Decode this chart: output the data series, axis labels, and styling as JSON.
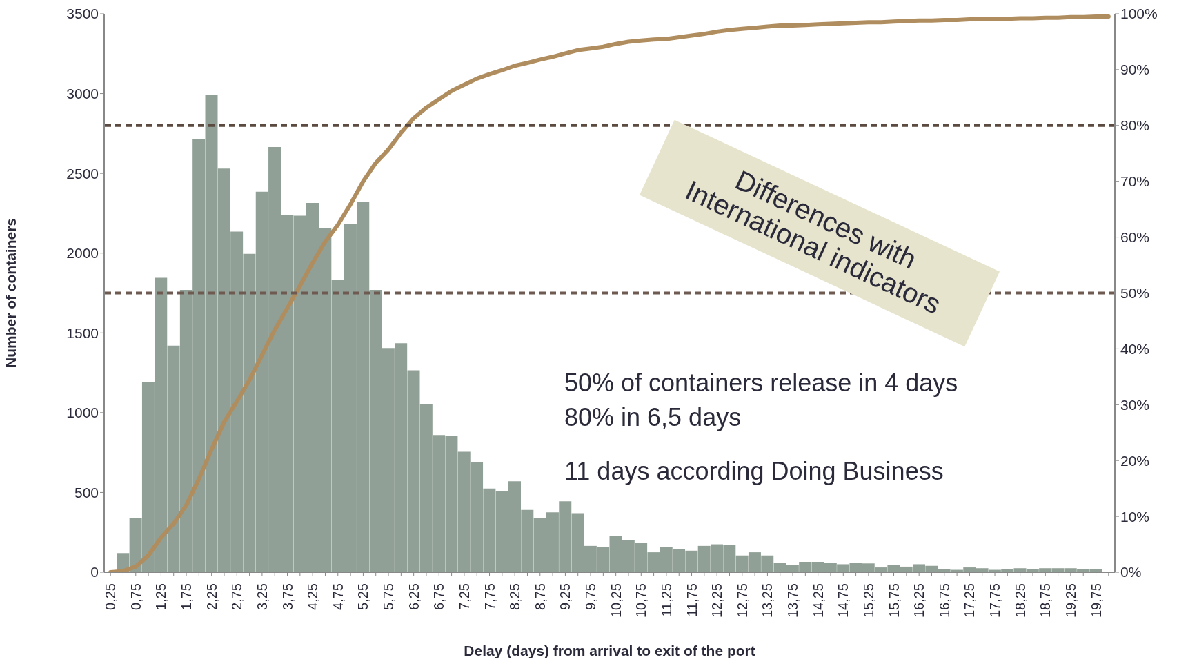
{
  "chart_data": {
    "type": "bar",
    "xlabel": "Delay (days) from arrival to exit of the port",
    "ylabel": "Number of containers",
    "categories": [
      "0,25",
      null,
      "0,75",
      null,
      "1,25",
      null,
      "1,75",
      null,
      "2,25",
      null,
      "2,75",
      null,
      "3,25",
      null,
      "3,75",
      null,
      "4,25",
      null,
      "4,75",
      null,
      "5,25",
      null,
      "5,75",
      null,
      "6,25",
      null,
      "6,75",
      null,
      "7,25",
      null,
      "7,75",
      null,
      "8,25",
      null,
      "8,75",
      null,
      "9,25",
      null,
      "9,75",
      null,
      "10,25",
      null,
      "10,75",
      null,
      "11,25",
      null,
      "11,75",
      null,
      "12,25",
      null,
      "12,75",
      null,
      "13,25",
      null,
      "13,75",
      null,
      "14,25",
      null,
      "14,75",
      null,
      "15,25",
      null,
      "15,75",
      null,
      "16,25",
      null,
      "16,75",
      null,
      "17,25",
      null,
      "17,75",
      null,
      "18,25",
      null,
      "18,75",
      null,
      "19,25",
      null,
      "19,75",
      null
    ],
    "series": [
      {
        "color": "#91a096",
        "values": [
          0,
          120,
          340,
          1190,
          1845,
          1420,
          1770,
          2715,
          2990,
          2530,
          2135,
          1995,
          2385,
          2665,
          2240,
          2235,
          2315,
          2155,
          1830,
          2180,
          2320,
          1770,
          1405,
          1435,
          1265,
          1055,
          860,
          855,
          755,
          690,
          525,
          510,
          570,
          390,
          340,
          375,
          445,
          370,
          165,
          160,
          225,
          200,
          185,
          125,
          160,
          145,
          135,
          165,
          175,
          170,
          105,
          125,
          105,
          60,
          45,
          65,
          65,
          60,
          50,
          60,
          55,
          30,
          45,
          35,
          50,
          40,
          20,
          15,
          30,
          25,
          15,
          20,
          25,
          20,
          25,
          25,
          25,
          20,
          20,
          null
        ]
      },
      {
        "type": "line",
        "axis": "y2",
        "color": "#b08d5e",
        "values": [
          0,
          0.2,
          1,
          3,
          6.2,
          8.7,
          12,
          16.7,
          22,
          26.9,
          30.6,
          34.4,
          38.9,
          43.4,
          47.3,
          51.3,
          55.4,
          59.2,
          62.2,
          65.9,
          70,
          73.3,
          75.7,
          78.7,
          81.3,
          83.2,
          84.7,
          86.2,
          87.3,
          88.4,
          89.2,
          89.9,
          90.7,
          91.2,
          91.8,
          92.3,
          92.9,
          93.5,
          93.8,
          94.1,
          94.6,
          95,
          95.2,
          95.4,
          95.5,
          95.8,
          96.1,
          96.4,
          96.8,
          97.1,
          97.3,
          97.5,
          97.7,
          97.9,
          97.9,
          98,
          98.1,
          98.2,
          98.3,
          98.4,
          98.5,
          98.5,
          98.6,
          98.7,
          98.8,
          98.8,
          98.9,
          98.9,
          99,
          99,
          99.1,
          99.1,
          99.2,
          99.2,
          99.3,
          99.3,
          99.4,
          99.4,
          99.5,
          99.5
        ]
      }
    ],
    "ylim": [
      0,
      3500
    ],
    "yticks": [
      0,
      500,
      1000,
      1500,
      2000,
      2500,
      3000,
      3500
    ],
    "y2lim": [
      0,
      100
    ],
    "y2ticks": [
      {
        "value": 0,
        "label": "0%"
      },
      {
        "value": 10,
        "label": "10%"
      },
      {
        "value": 20,
        "label": "20%"
      },
      {
        "value": 30,
        "label": "30%"
      },
      {
        "value": 40,
        "label": "40%"
      },
      {
        "value": 50,
        "label": "50%"
      },
      {
        "value": 60,
        "label": "60%"
      },
      {
        "value": 70,
        "label": "70%"
      },
      {
        "value": 80,
        "label": "80%"
      },
      {
        "value": 90,
        "label": "90%"
      },
      {
        "value": 100,
        "label": "100%"
      }
    ],
    "ref_lines": [
      {
        "axis": "y2",
        "value": 80,
        "color": "#5a4a40",
        "line_style": "dashed"
      },
      {
        "axis": "y2",
        "value": 50,
        "color": "#6e5a50",
        "line_style": "dashed"
      }
    ],
    "annotations": [
      "Differences with International indicators",
      "50% of containers release in 4 days",
      "80% in 6,5 days",
      "11 days according Doing Business"
    ],
    "grid": false,
    "legend": false,
    "marker": "none",
    "line_style": "solid"
  }
}
